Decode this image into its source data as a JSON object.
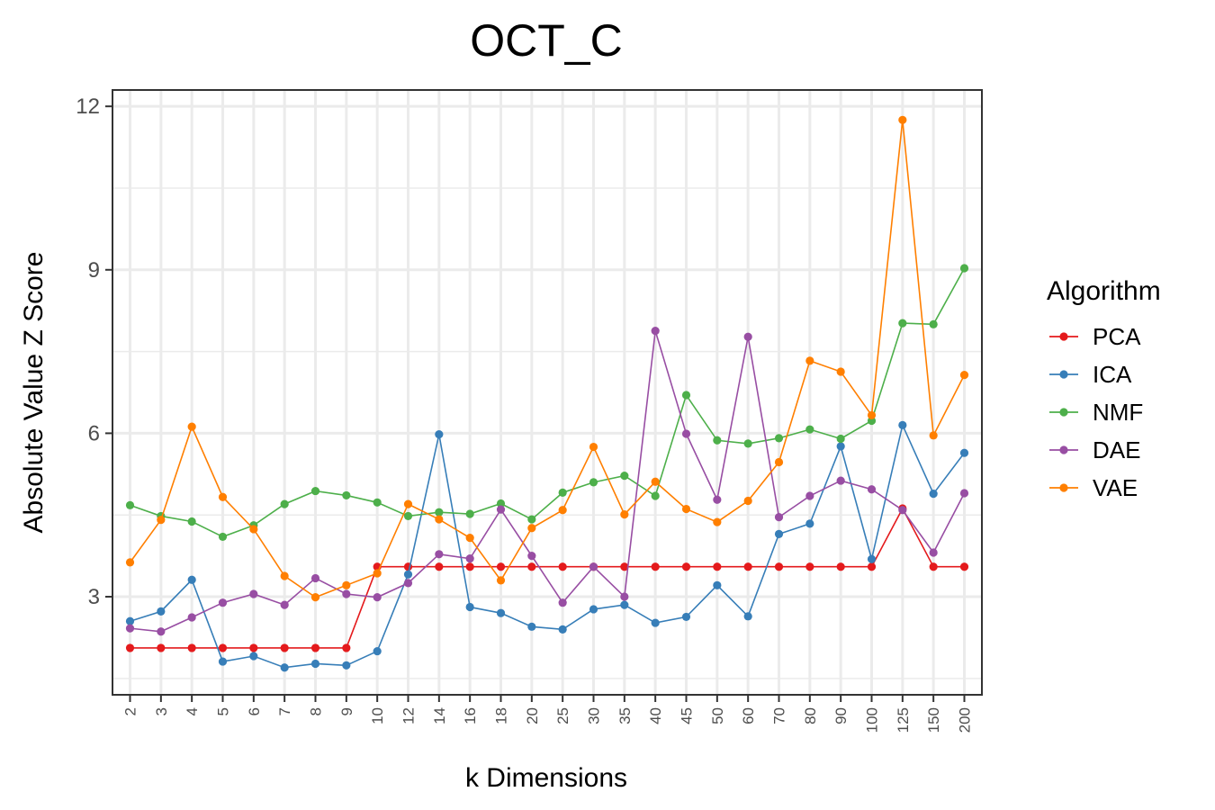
{
  "chart_data": {
    "type": "line",
    "title": "OCT_C",
    "xlabel": "k Dimensions",
    "ylabel": "Absolute Value Z Score",
    "categories": [
      "2",
      "3",
      "4",
      "5",
      "6",
      "7",
      "8",
      "9",
      "10",
      "12",
      "14",
      "16",
      "18",
      "20",
      "25",
      "30",
      "35",
      "40",
      "45",
      "50",
      "60",
      "70",
      "80",
      "90",
      "100",
      "125",
      "150",
      "200"
    ],
    "ylim": [
      1.2,
      12.3
    ],
    "yticks": [
      3,
      6,
      9,
      12
    ],
    "grid": true,
    "legend": {
      "title": "Algorithm",
      "placement": "right"
    },
    "series": [
      {
        "name": "PCA",
        "color": "#e41a1c",
        "values": [
          2.06,
          2.06,
          2.06,
          2.06,
          2.06,
          2.06,
          2.06,
          2.06,
          3.55,
          3.55,
          3.55,
          3.55,
          3.55,
          3.55,
          3.55,
          3.55,
          3.55,
          3.55,
          3.55,
          3.55,
          3.55,
          3.55,
          3.55,
          3.55,
          3.55,
          4.62,
          3.55,
          3.55
        ]
      },
      {
        "name": "ICA",
        "color": "#377eb8",
        "values": [
          2.55,
          2.73,
          3.31,
          1.81,
          1.91,
          1.7,
          1.77,
          1.74,
          2.0,
          3.41,
          5.98,
          2.81,
          2.7,
          2.45,
          2.4,
          2.77,
          2.85,
          2.52,
          2.63,
          3.21,
          2.64,
          4.15,
          4.34,
          5.76,
          3.69,
          6.15,
          4.89,
          5.64
        ]
      },
      {
        "name": "NMF",
        "color": "#4daf4a",
        "values": [
          4.68,
          4.48,
          4.38,
          4.1,
          4.31,
          4.7,
          4.94,
          4.86,
          4.73,
          4.48,
          4.55,
          4.52,
          4.71,
          4.42,
          4.91,
          5.1,
          5.22,
          4.85,
          6.7,
          5.87,
          5.81,
          5.91,
          6.07,
          5.9,
          6.23,
          8.02,
          8.0,
          9.03
        ]
      },
      {
        "name": "DAE",
        "color": "#984ea3",
        "values": [
          2.42,
          2.36,
          2.62,
          2.89,
          3.05,
          2.85,
          3.34,
          3.05,
          2.99,
          3.25,
          3.78,
          3.7,
          4.6,
          3.75,
          2.89,
          3.55,
          3.0,
          7.88,
          5.99,
          4.78,
          7.77,
          4.46,
          4.85,
          5.13,
          4.97,
          4.59,
          3.81,
          4.9
        ]
      },
      {
        "name": "VAE",
        "color": "#ff7f00",
        "values": [
          3.63,
          4.41,
          6.12,
          4.83,
          4.24,
          3.38,
          2.99,
          3.21,
          3.43,
          4.7,
          4.42,
          4.08,
          3.3,
          4.26,
          4.59,
          5.75,
          4.51,
          5.11,
          4.61,
          4.37,
          4.76,
          5.47,
          7.33,
          7.13,
          6.33,
          11.75,
          5.96,
          7.07
        ]
      }
    ]
  }
}
